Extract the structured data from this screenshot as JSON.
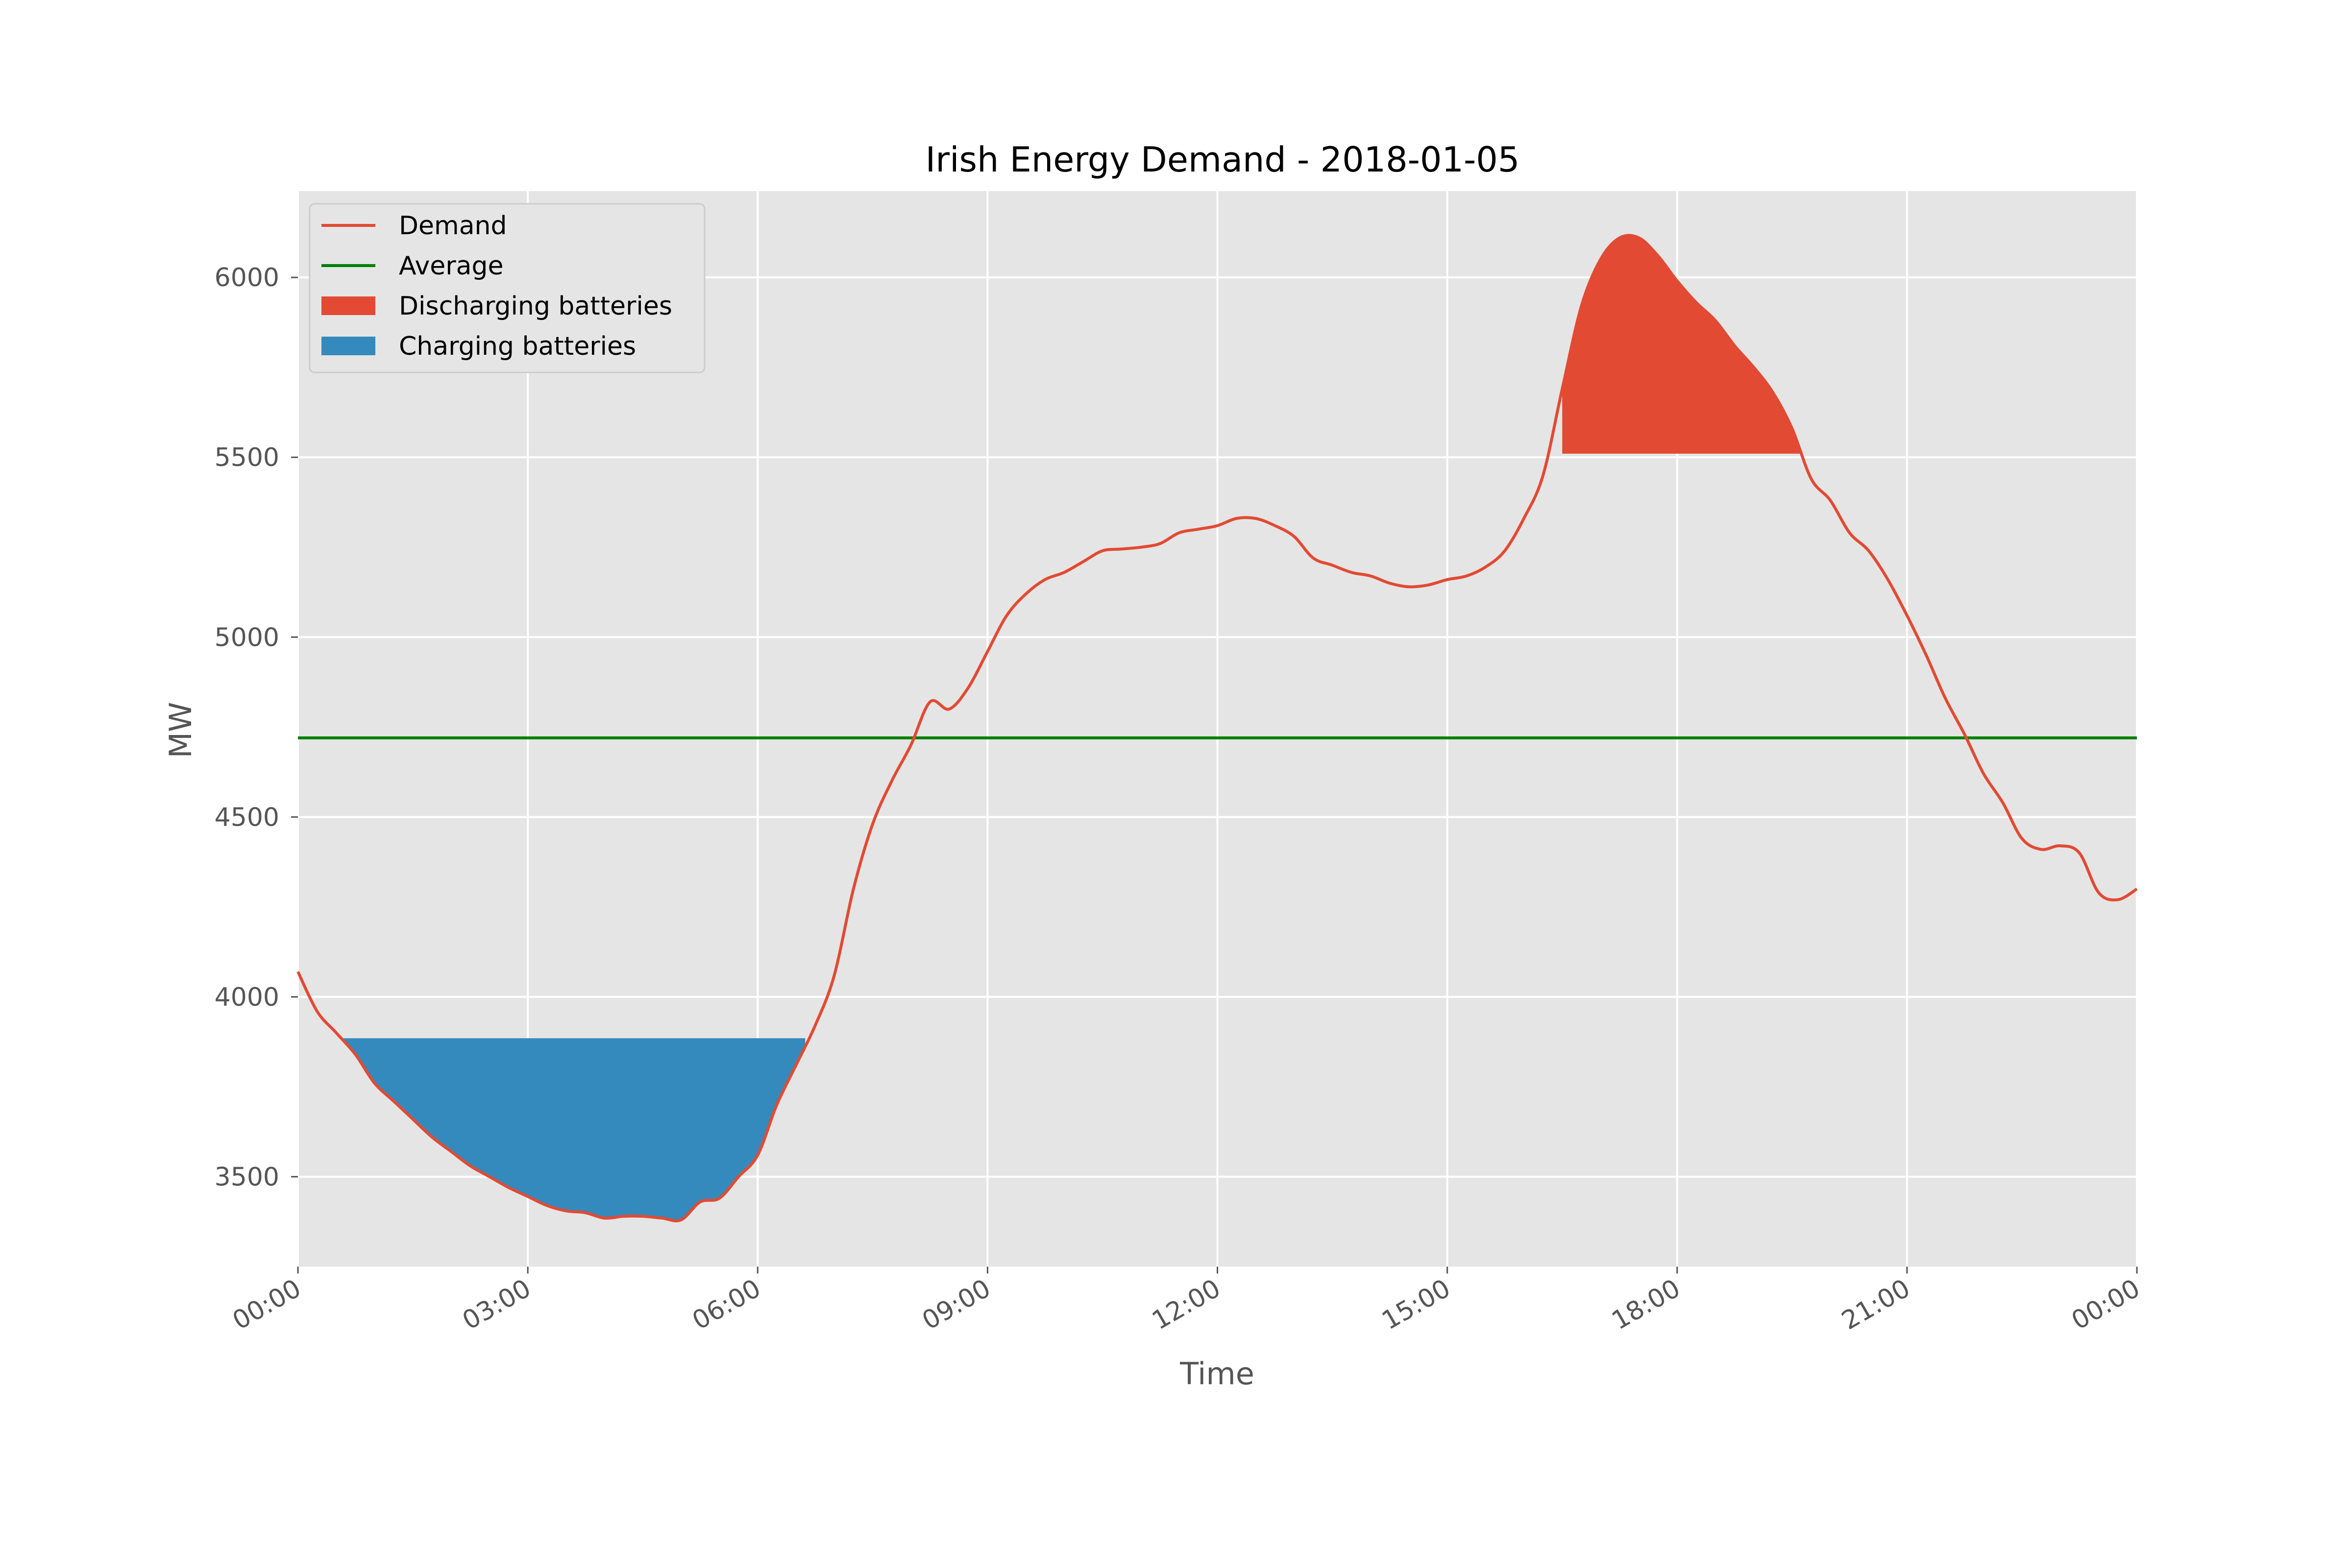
{
  "chart_data": {
    "type": "line",
    "title": "Irish Energy Demand - 2018-01-05",
    "xlabel": "Time",
    "ylabel": "MW",
    "xlim_hours": [
      0,
      24
    ],
    "ylim": [
      3250,
      6240
    ],
    "x_ticks": [
      {
        "hour": 0,
        "label": "00:00"
      },
      {
        "hour": 3,
        "label": "03:00"
      },
      {
        "hour": 6,
        "label": "06:00"
      },
      {
        "hour": 9,
        "label": "09:00"
      },
      {
        "hour": 12,
        "label": "12:00"
      },
      {
        "hour": 15,
        "label": "15:00"
      },
      {
        "hour": 18,
        "label": "18:00"
      },
      {
        "hour": 21,
        "label": "21:00"
      },
      {
        "hour": 24,
        "label": "00:00"
      }
    ],
    "y_ticks": [
      {
        "value": 3500,
        "label": "3500"
      },
      {
        "value": 4000,
        "label": "4000"
      },
      {
        "value": 4500,
        "label": "4500"
      },
      {
        "value": 5000,
        "label": "5000"
      },
      {
        "value": 5500,
        "label": "5500"
      },
      {
        "value": 6000,
        "label": "6000"
      }
    ],
    "grid": true,
    "legend_position": "top-left",
    "series": [
      {
        "name": "Demand",
        "color": "#e24a33",
        "x_hours": [
          0,
          0.25,
          0.5,
          0.75,
          1,
          1.25,
          1.5,
          1.75,
          2,
          2.25,
          2.5,
          2.75,
          3,
          3.25,
          3.5,
          3.75,
          4,
          4.25,
          4.5,
          4.75,
          5,
          5.25,
          5.5,
          5.75,
          6,
          6.25,
          6.5,
          6.75,
          7,
          7.25,
          7.5,
          7.75,
          8,
          8.25,
          8.5,
          8.75,
          9,
          9.25,
          9.5,
          9.75,
          10,
          10.25,
          10.5,
          10.75,
          11,
          11.25,
          11.5,
          11.75,
          12,
          12.25,
          12.5,
          12.75,
          13,
          13.25,
          13.5,
          13.75,
          14,
          14.25,
          14.5,
          14.75,
          15,
          15.25,
          15.5,
          15.75,
          16,
          16.25,
          16.5,
          16.75,
          17,
          17.25,
          17.5,
          17.75,
          18,
          18.25,
          18.5,
          18.75,
          19,
          19.25,
          19.5,
          19.75,
          20,
          20.25,
          20.5,
          20.75,
          21,
          21.25,
          21.5,
          21.75,
          22,
          22.25,
          22.5,
          22.75,
          23,
          23.25,
          23.5,
          23.75,
          24
        ],
        "values": [
          4070,
          3960,
          3900,
          3840,
          3760,
          3710,
          3660,
          3610,
          3570,
          3530,
          3500,
          3470,
          3445,
          3420,
          3405,
          3400,
          3385,
          3390,
          3390,
          3385,
          3380,
          3430,
          3440,
          3500,
          3560,
          3700,
          3810,
          3920,
          4060,
          4300,
          4480,
          4600,
          4700,
          4820,
          4800,
          4860,
          4960,
          5060,
          5120,
          5160,
          5180,
          5210,
          5240,
          5245,
          5250,
          5260,
          5290,
          5300,
          5310,
          5330,
          5330,
          5310,
          5280,
          5220,
          5200,
          5180,
          5170,
          5150,
          5140,
          5145,
          5160,
          5170,
          5195,
          5240,
          5330,
          5450,
          5690,
          5920,
          6050,
          6110,
          6110,
          6060,
          5990,
          5930,
          5880,
          5810,
          5750,
          5680,
          5580,
          5440,
          5380,
          5290,
          5240,
          5160,
          5060,
          4950,
          4830,
          4730,
          4620,
          4540,
          4440,
          4410,
          4420,
          4400,
          4290,
          4270,
          4300
        ]
      },
      {
        "name": "Average",
        "color": "#008000",
        "value": 4720
      }
    ],
    "fills": [
      {
        "name": "Discharging batteries",
        "color": "#e24a33",
        "threshold": 5510,
        "side": "above",
        "hour_range": [
          16.5,
          19.9
        ]
      },
      {
        "name": "Charging batteries",
        "color": "#348abd",
        "threshold": 3885,
        "side": "below",
        "hour_range": [
          0.57,
          6.62
        ]
      }
    ],
    "colors": {
      "plot_background": "#e5e5e5",
      "grid": "#ffffff",
      "legend_background": "#e5e5e5",
      "legend_border": "#cccccc"
    }
  }
}
